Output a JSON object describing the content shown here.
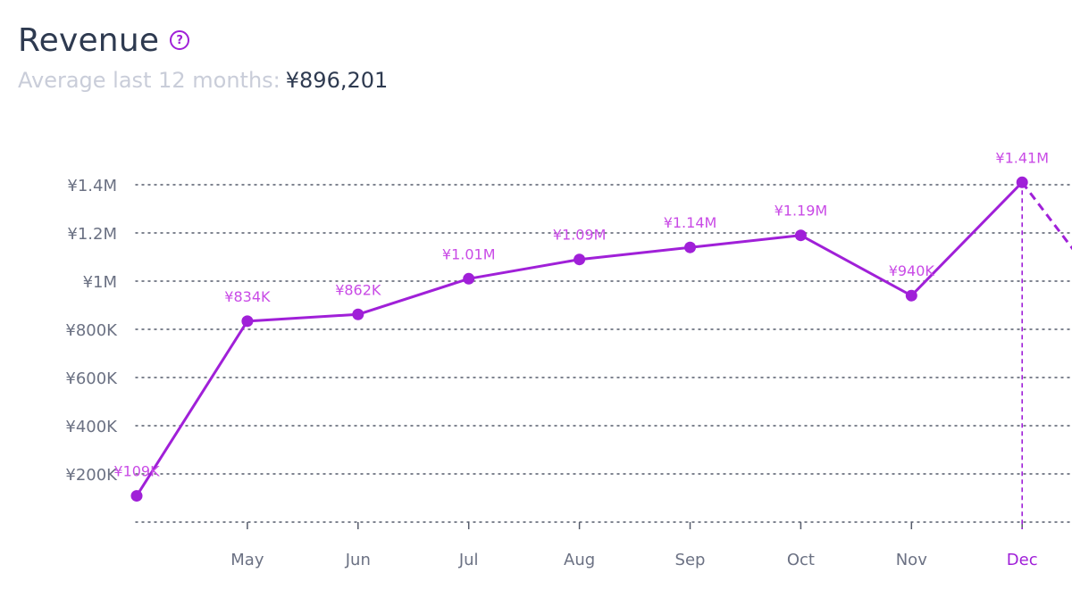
{
  "header": {
    "title": "Revenue",
    "help_icon": "question-circle-icon",
    "subtitle_label": "Average last 12 months:",
    "subtitle_value": "¥896,201"
  },
  "colors": {
    "accent": "#a020d8",
    "label": "#c94be6",
    "title": "#2e3a50",
    "muted": "#c9cdd9",
    "axis_text": "#6b7183",
    "grid": "#555b6b"
  },
  "chart_data": {
    "type": "line",
    "categories": [
      "",
      "May",
      "Jun",
      "Jul",
      "Aug",
      "Sep",
      "Oct",
      "Nov",
      "Dec"
    ],
    "series": [
      {
        "values": [
          109000,
          834000,
          862000,
          1010000,
          1090000,
          1140000,
          1190000,
          940000,
          1410000
        ],
        "labels": [
          "¥109K",
          "¥834K",
          "¥862K",
          "¥1.01M",
          "¥1.09M",
          "¥1.14M",
          "¥1.19M",
          "¥940K",
          "¥1.41M"
        ]
      }
    ],
    "y_ticks": [
      0,
      200000,
      400000,
      600000,
      800000,
      1000000,
      1200000,
      1400000
    ],
    "y_tick_labels": [
      "",
      "¥200K",
      "¥400K",
      "¥600K",
      "¥800K",
      "¥1M",
      "¥1.2M",
      "¥1.4M"
    ],
    "ylim": [
      0,
      1400000
    ],
    "highlighted_category": "Dec",
    "continuation": "dashed line from Dec continues downward past right edge",
    "grid": true,
    "legend": "none"
  }
}
